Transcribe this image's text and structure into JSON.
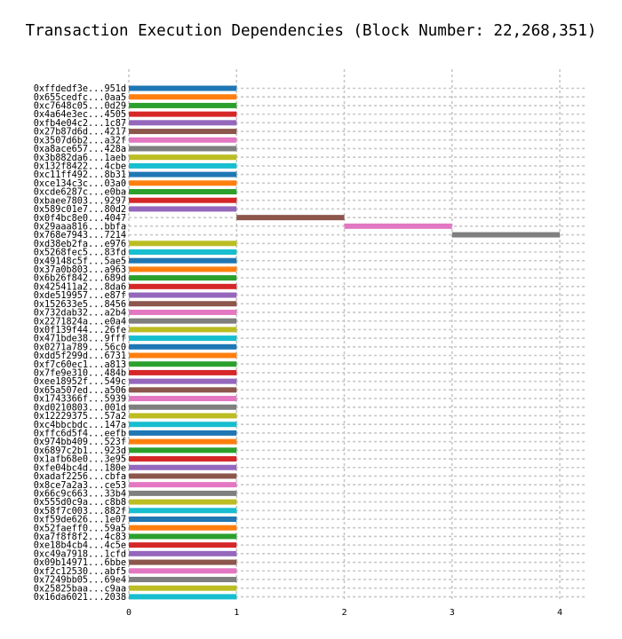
{
  "chart_data": {
    "type": "bar",
    "orientation": "horizontal",
    "title": "Transaction Execution Dependencies (Block Number: 22,268,351)",
    "xlabel": "",
    "ylabel": "",
    "xlim": [
      0,
      4
    ],
    "x_ticks": [
      "0",
      "1",
      "2",
      "3",
      "4"
    ],
    "grid": true,
    "colors": [
      "#1f77b4",
      "#ff7f0e",
      "#2ca02c",
      "#d62728",
      "#9467bd",
      "#8c564b",
      "#e377c2",
      "#bcbd22",
      "#17becf",
      "#7f7f7f"
    ],
    "bars": [
      {
        "label": "0xffdedf3e...951d",
        "start": 0,
        "end": 1,
        "color": "#1f77b4"
      },
      {
        "label": "0x655cedfc...0aa5",
        "start": 0,
        "end": 1,
        "color": "#ff7f0e"
      },
      {
        "label": "0xc7648c05...0d29",
        "start": 0,
        "end": 1,
        "color": "#2ca02c"
      },
      {
        "label": "0x4a64e3ec...4505",
        "start": 0,
        "end": 1,
        "color": "#d62728"
      },
      {
        "label": "0xfb4e04c2...1c87",
        "start": 0,
        "end": 1,
        "color": "#9467bd"
      },
      {
        "label": "0x27b87d6d...4217",
        "start": 0,
        "end": 1,
        "color": "#8c564b"
      },
      {
        "label": "0x3507d6b2...a32f",
        "start": 0,
        "end": 1,
        "color": "#e377c2"
      },
      {
        "label": "0xa8ace657...428a",
        "start": 0,
        "end": 1,
        "color": "#7f7f7f"
      },
      {
        "label": "0x3b882da6...1aeb",
        "start": 0,
        "end": 1,
        "color": "#bcbd22"
      },
      {
        "label": "0x132f8422...4cbe",
        "start": 0,
        "end": 1,
        "color": "#17becf"
      },
      {
        "label": "0xc11ff492...8b31",
        "start": 0,
        "end": 1,
        "color": "#1f77b4"
      },
      {
        "label": "0xce134c3c...03a0",
        "start": 0,
        "end": 1,
        "color": "#ff7f0e"
      },
      {
        "label": "0xcde6287c...e0ba",
        "start": 0,
        "end": 1,
        "color": "#2ca02c"
      },
      {
        "label": "0xbaee7803...9297",
        "start": 0,
        "end": 1,
        "color": "#d62728"
      },
      {
        "label": "0x589c01e7...80d2",
        "start": 0,
        "end": 1,
        "color": "#9467bd"
      },
      {
        "label": "0x0f4bc8e0...4047",
        "start": 1,
        "end": 2,
        "color": "#8c564b"
      },
      {
        "label": "0x29aaa816...bbfa",
        "start": 2,
        "end": 3,
        "color": "#e377c2"
      },
      {
        "label": "0x768e7943...7214",
        "start": 3,
        "end": 4,
        "color": "#7f7f7f"
      },
      {
        "label": "0xd38eb2fa...e976",
        "start": 0,
        "end": 1,
        "color": "#bcbd22"
      },
      {
        "label": "0x5268fec5...83fd",
        "start": 0,
        "end": 1,
        "color": "#17becf"
      },
      {
        "label": "0x49148c5f...5ae5",
        "start": 0,
        "end": 1,
        "color": "#1f77b4"
      },
      {
        "label": "0x37a0b803...a963",
        "start": 0,
        "end": 1,
        "color": "#ff7f0e"
      },
      {
        "label": "0x6b26f842...689d",
        "start": 0,
        "end": 1,
        "color": "#2ca02c"
      },
      {
        "label": "0x425411a2...8da6",
        "start": 0,
        "end": 1,
        "color": "#d62728"
      },
      {
        "label": "0xde519957...e87f",
        "start": 0,
        "end": 1,
        "color": "#9467bd"
      },
      {
        "label": "0x152633e5...8456",
        "start": 0,
        "end": 1,
        "color": "#8c564b"
      },
      {
        "label": "0x732dab32...a2b4",
        "start": 0,
        "end": 1,
        "color": "#e377c2"
      },
      {
        "label": "0x2271824a...e0a4",
        "start": 0,
        "end": 1,
        "color": "#7f7f7f"
      },
      {
        "label": "0x0f139f44...26fe",
        "start": 0,
        "end": 1,
        "color": "#bcbd22"
      },
      {
        "label": "0x471bde38...9fff",
        "start": 0,
        "end": 1,
        "color": "#17becf"
      },
      {
        "label": "0x0271a789...56c0",
        "start": 0,
        "end": 1,
        "color": "#1f77b4"
      },
      {
        "label": "0xdd5f299d...6731",
        "start": 0,
        "end": 1,
        "color": "#ff7f0e"
      },
      {
        "label": "0xf7c60ec1...a813",
        "start": 0,
        "end": 1,
        "color": "#2ca02c"
      },
      {
        "label": "0x7fe9e310...484b",
        "start": 0,
        "end": 1,
        "color": "#d62728"
      },
      {
        "label": "0xee18952f...549c",
        "start": 0,
        "end": 1,
        "color": "#9467bd"
      },
      {
        "label": "0x65a507ed...a506",
        "start": 0,
        "end": 1,
        "color": "#8c564b"
      },
      {
        "label": "0x1743366f...5939",
        "start": 0,
        "end": 1,
        "color": "#e377c2"
      },
      {
        "label": "0xd0210803...001d",
        "start": 0,
        "end": 1,
        "color": "#7f7f7f"
      },
      {
        "label": "0x12229375...57a2",
        "start": 0,
        "end": 1,
        "color": "#bcbd22"
      },
      {
        "label": "0xc4bbcbdc...147a",
        "start": 0,
        "end": 1,
        "color": "#17becf"
      },
      {
        "label": "0xffc6d5f4...eefb",
        "start": 0,
        "end": 1,
        "color": "#1f77b4"
      },
      {
        "label": "0x974bb409...523f",
        "start": 0,
        "end": 1,
        "color": "#ff7f0e"
      },
      {
        "label": "0x6897c2b1...923d",
        "start": 0,
        "end": 1,
        "color": "#2ca02c"
      },
      {
        "label": "0x1afb68e0...3e95",
        "start": 0,
        "end": 1,
        "color": "#d62728"
      },
      {
        "label": "0xfe04bc4d...180e",
        "start": 0,
        "end": 1,
        "color": "#9467bd"
      },
      {
        "label": "0xadaf2256...cbfa",
        "start": 0,
        "end": 1,
        "color": "#8c564b"
      },
      {
        "label": "0x8ce7a2a3...ce53",
        "start": 0,
        "end": 1,
        "color": "#e377c2"
      },
      {
        "label": "0x66c9c663...33b4",
        "start": 0,
        "end": 1,
        "color": "#7f7f7f"
      },
      {
        "label": "0x555d0c9a...c8b8",
        "start": 0,
        "end": 1,
        "color": "#bcbd22"
      },
      {
        "label": "0x58f7c003...882f",
        "start": 0,
        "end": 1,
        "color": "#17becf"
      },
      {
        "label": "0xf59de626...1e07",
        "start": 0,
        "end": 1,
        "color": "#1f77b4"
      },
      {
        "label": "0x52faeff0...59a5",
        "start": 0,
        "end": 1,
        "color": "#ff7f0e"
      },
      {
        "label": "0xa7f8f8f2...4c83",
        "start": 0,
        "end": 1,
        "color": "#2ca02c"
      },
      {
        "label": "0xe18b4cb4...4c5e",
        "start": 0,
        "end": 1,
        "color": "#d62728"
      },
      {
        "label": "0xc49a7918...1cfd",
        "start": 0,
        "end": 1,
        "color": "#9467bd"
      },
      {
        "label": "0x09b14971...6bbe",
        "start": 0,
        "end": 1,
        "color": "#8c564b"
      },
      {
        "label": "0xf2c12530...abf5",
        "start": 0,
        "end": 1,
        "color": "#e377c2"
      },
      {
        "label": "0x7249bb05...69e4",
        "start": 0,
        "end": 1,
        "color": "#7f7f7f"
      },
      {
        "label": "0x25825baa...c9aa",
        "start": 0,
        "end": 1,
        "color": "#bcbd22"
      },
      {
        "label": "0x16da6021...2038",
        "start": 0,
        "end": 1,
        "color": "#17becf"
      }
    ]
  }
}
